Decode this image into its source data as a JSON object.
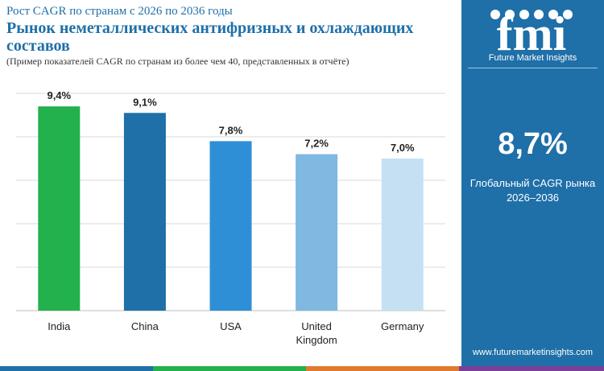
{
  "header": {
    "subtitle": "Рост CAGR по странам с 2026 по 2036 годы",
    "title": "Рынок неметаллических антифризных и охлаждающих составов",
    "note": "(Пример показателей CAGR по странам из более чем 40, представленных в отчёте)"
  },
  "chart_data": {
    "type": "bar",
    "categories": [
      "India",
      "China",
      "USA",
      "United Kingdom",
      "Germany"
    ],
    "category_lines": [
      [
        "India"
      ],
      [
        "China"
      ],
      [
        "USA"
      ],
      [
        "United",
        "Kingdom"
      ],
      [
        "Germany"
      ]
    ],
    "values": [
      9.4,
      9.1,
      7.8,
      7.2,
      7.0
    ],
    "data_labels": [
      "9,4%",
      "9,1%",
      "7,8%",
      "7,2%",
      "7,0%"
    ],
    "bar_colors": [
      "#22b14c",
      "#1f6fa8",
      "#2e8fd6",
      "#7fb8e0",
      "#c5e0f3"
    ],
    "ylim": [
      0,
      10
    ],
    "grid": true,
    "xlabel": "",
    "ylabel": ""
  },
  "sidebar": {
    "logo_text": "fmi",
    "logo_subtitle": "Future Market Insights",
    "cagr_value": "8,7%",
    "cagr_label_line1": "Глобальный CAGR рынка",
    "cagr_label_line2": "2026–2036",
    "website": "www.futuremarketinsights.com",
    "background_color": "#1f6fa8"
  },
  "bottom_bar_colors": [
    "#1f6fa8",
    "#22b14c",
    "#e07a2e",
    "#7a3f98"
  ]
}
